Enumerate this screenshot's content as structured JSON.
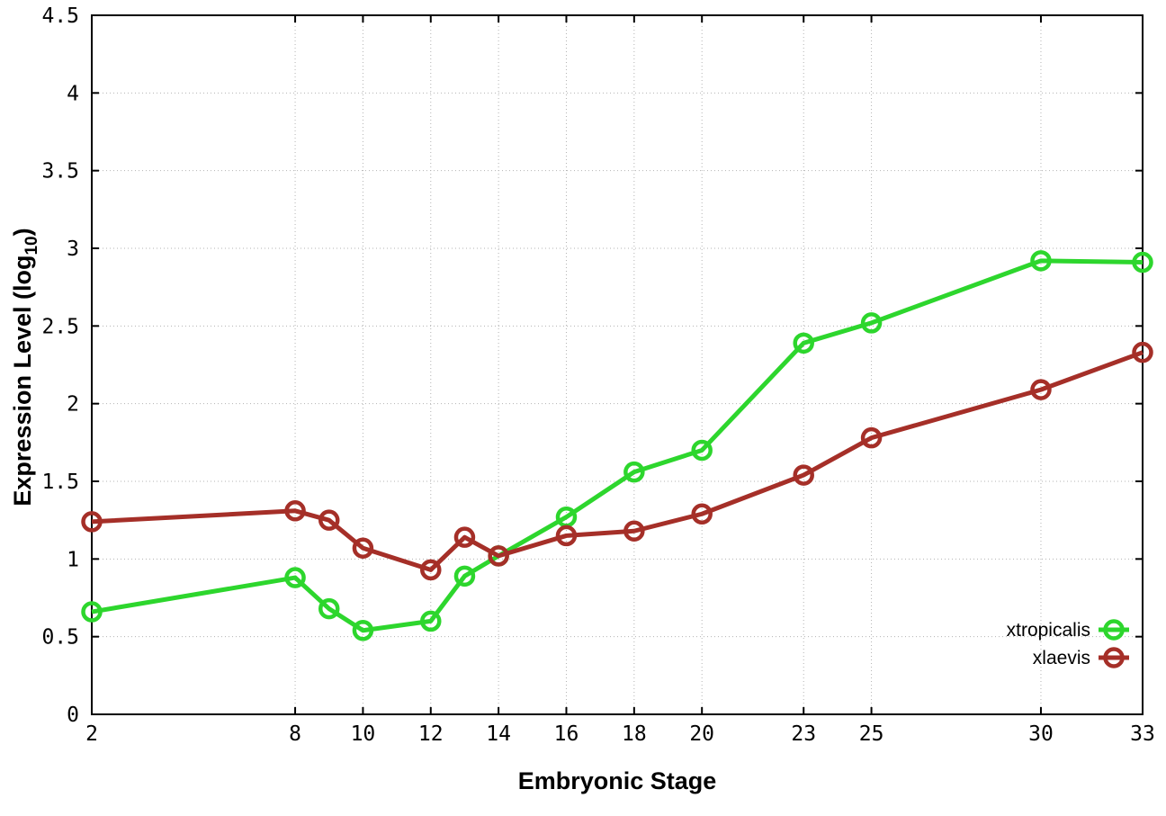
{
  "chart_data": {
    "type": "line",
    "title": "",
    "xlabel": "Embryonic Stage",
    "ylabel": {
      "main": "Expression Level (log",
      "sub": "10",
      "end": ")"
    },
    "x": [
      2,
      8,
      9,
      10,
      12,
      13,
      14,
      16,
      18,
      20,
      23,
      25,
      30,
      33
    ],
    "xlim": [
      2,
      33
    ],
    "ylim": [
      0,
      4.5
    ],
    "xticks": [
      2,
      8,
      10,
      12,
      14,
      16,
      18,
      20,
      23,
      25,
      30,
      33
    ],
    "xtick_labels": [
      "2",
      "8",
      "10",
      "12",
      "14",
      "16",
      "18",
      "20",
      "23",
      "25",
      "30",
      "33"
    ],
    "yticks": [
      0,
      0.5,
      1,
      1.5,
      2,
      2.5,
      3,
      3.5,
      4,
      4.5
    ],
    "ytick_labels": [
      "0",
      "0.5",
      "1",
      "1.5",
      "2",
      "2.5",
      "3",
      "3.5",
      "4",
      "4.5"
    ],
    "grid": true,
    "legend_position": "bottom-right",
    "series": [
      {
        "name": "xtropicalis",
        "color": "#2dd62d",
        "values": [
          0.66,
          0.88,
          0.68,
          0.54,
          0.6,
          0.89,
          1.02,
          1.27,
          1.56,
          1.7,
          2.39,
          2.52,
          2.92,
          2.91
        ]
      },
      {
        "name": "xlaevis",
        "color": "#a52f28",
        "values": [
          1.24,
          1.31,
          1.25,
          1.07,
          0.93,
          1.14,
          1.02,
          1.15,
          1.18,
          1.29,
          1.54,
          1.78,
          2.09,
          2.33
        ]
      }
    ],
    "colors": {
      "border": "#000000",
      "grid": "#b3b3b3",
      "background": "#ffffff"
    }
  }
}
